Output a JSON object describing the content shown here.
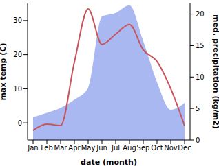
{
  "chart_data": {
    "type": "line",
    "categories": [
      "Jan",
      "Feb",
      "Mar",
      "Apr",
      "May",
      "Jun",
      "Jul",
      "Aug",
      "Sep",
      "Oct",
      "Nov",
      "Dec"
    ],
    "x_label": "date (month)",
    "y_label": "max temp (C)",
    "y2_label": "med. precipitation (kg/m2)",
    "ylim": [
      -5,
      35
    ],
    "yticks": [
      0,
      10,
      20,
      30
    ],
    "y2lim": [
      0,
      21.7
    ],
    "y2ticks": [
      0,
      5,
      10,
      15,
      20
    ],
    "grid": false,
    "series": [
      {
        "name": "med. precipitation",
        "type": "area",
        "axis": "y2",
        "color": "#aab8f2",
        "values": [
          3.6,
          4.3,
          5.1,
          6.4,
          8.3,
          19.6,
          20.2,
          21.4,
          15.7,
          9.2,
          4.8,
          5.9
        ]
      },
      {
        "name": "max temp",
        "type": "line",
        "axis": "y",
        "color": "#c8545c",
        "values": [
          -2.2,
          -0.4,
          -0.8,
          17.8,
          33.4,
          23,
          26,
          28.8,
          21.4,
          18,
          10,
          -0.8
        ]
      }
    ]
  }
}
